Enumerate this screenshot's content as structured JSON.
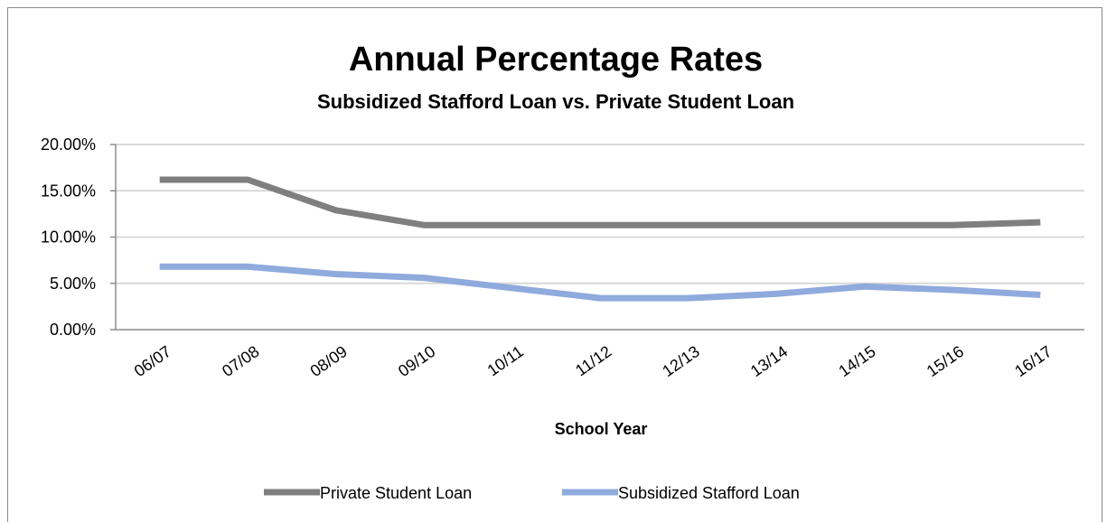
{
  "chart_data": {
    "type": "line",
    "title": "Annual Percentage Rates",
    "subtitle": "Subsidized Stafford Loan vs. Private Student Loan",
    "xlabel": "School Year",
    "ylabel": "",
    "categories": [
      "06/07",
      "07/08",
      "08/09",
      "09/10",
      "10/11",
      "11/12",
      "12/13",
      "13/14",
      "14/15",
      "15/16",
      "16/17"
    ],
    "y_ticks": [
      "0.00%",
      "5.00%",
      "10.00%",
      "15.00%",
      "20.00%"
    ],
    "ylim": [
      0,
      20
    ],
    "grid": true,
    "legend_position": "bottom",
    "series": [
      {
        "name": "Private Student Loan",
        "color": "#7f7f7f",
        "values": [
          16.2,
          16.2,
          12.9,
          11.3,
          11.3,
          11.3,
          11.3,
          11.3,
          11.3,
          11.3,
          11.6
        ]
      },
      {
        "name": "Subsidized Stafford Loan",
        "color": "#8faadc",
        "values": [
          6.8,
          6.8,
          6.0,
          5.6,
          4.5,
          3.4,
          3.4,
          3.86,
          4.66,
          4.29,
          3.76
        ]
      }
    ]
  }
}
